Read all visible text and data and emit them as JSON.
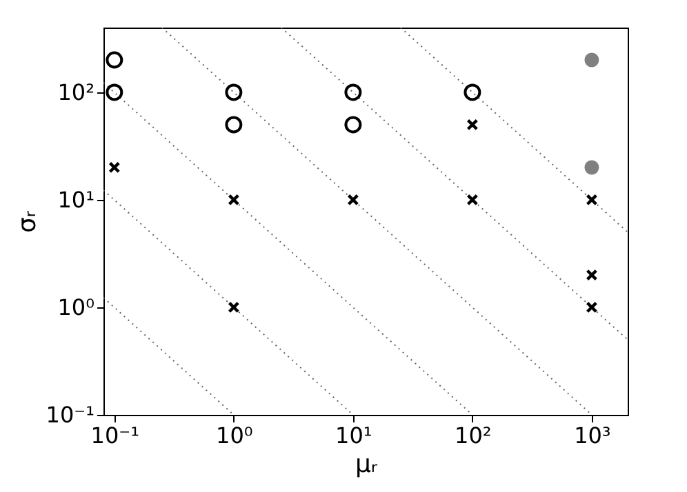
{
  "chart_data": {
    "type": "scatter",
    "xlabel": "μᵣ",
    "ylabel": "σᵣ",
    "log": "xy",
    "grid": false,
    "legend": false,
    "xlim": [
      0.081,
      2000
    ],
    "ylim": [
      0.1,
      400
    ],
    "xticks": [
      {
        "value": 0.1,
        "label": "10⁻¹"
      },
      {
        "value": 1,
        "label": "10⁰"
      },
      {
        "value": 10,
        "label": "10¹"
      },
      {
        "value": 100,
        "label": "10²"
      },
      {
        "value": 1000,
        "label": "10³"
      }
    ],
    "yticks": [
      {
        "value": 0.1,
        "label": "10⁻¹"
      },
      {
        "value": 1,
        "label": "10⁰"
      },
      {
        "value": 10,
        "label": "10¹"
      },
      {
        "value": 100,
        "label": "10²"
      }
    ],
    "series": [
      {
        "type": "line",
        "line_style": "dotted",
        "marker": "none",
        "color": "#666666",
        "x": [
          0.081,
          1
        ],
        "values": [
          1.23,
          0.1
        ]
      },
      {
        "type": "line",
        "line_style": "dotted",
        "marker": "none",
        "color": "#666666",
        "x": [
          0.081,
          10
        ],
        "values": [
          12.3,
          0.1
        ]
      },
      {
        "type": "line",
        "line_style": "dotted",
        "marker": "none",
        "color": "#666666",
        "x": [
          0.081,
          100
        ],
        "values": [
          123,
          0.1
        ]
      },
      {
        "type": "line",
        "line_style": "dotted",
        "marker": "none",
        "color": "#666666",
        "x": [
          0.25,
          1000
        ],
        "values": [
          400,
          0.1
        ]
      },
      {
        "type": "line",
        "line_style": "dotted",
        "marker": "none",
        "color": "#666666",
        "x": [
          2.5,
          2000
        ],
        "values": [
          400,
          0.5
        ]
      },
      {
        "type": "line",
        "line_style": "dotted",
        "marker": "none",
        "color": "#666666",
        "x": [
          25,
          2000
        ],
        "values": [
          400,
          5
        ]
      },
      {
        "marker": "circle",
        "color": "#000000",
        "x": [
          0.1,
          0.1,
          1,
          1,
          10,
          10,
          100
        ],
        "values": [
          200,
          100,
          100,
          50,
          100,
          50,
          100
        ]
      },
      {
        "marker": "cross",
        "color": "#000000",
        "x": [
          0.1,
          1,
          1,
          10,
          100,
          100,
          1000,
          1000,
          1000
        ],
        "values": [
          20,
          10,
          1,
          10,
          50,
          10,
          10,
          2,
          1
        ]
      },
      {
        "marker": "circle",
        "color": "#808080",
        "x": [
          1000,
          1000
        ],
        "values": [
          200,
          20
        ]
      }
    ]
  }
}
